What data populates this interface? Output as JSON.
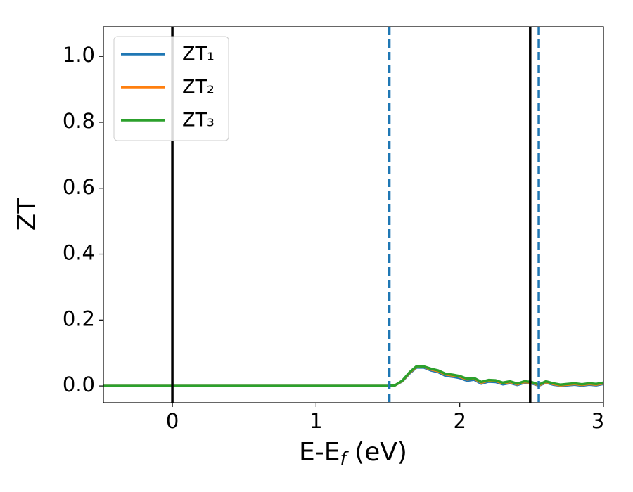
{
  "chart_data": {
    "type": "line",
    "xlabel": [
      "E-E",
      "f",
      " (eV)"
    ],
    "ylabel": "ZT",
    "x": [
      -0.48,
      0,
      0.5,
      1.0,
      1.5,
      1.55,
      1.6,
      1.65,
      1.7,
      1.75,
      1.8,
      1.85,
      1.9,
      1.95,
      2.0,
      2.05,
      2.1,
      2.15,
      2.2,
      2.25,
      2.3,
      2.35,
      2.4,
      2.45,
      2.5,
      2.55,
      2.6,
      2.65,
      2.7,
      2.75,
      2.8,
      2.85,
      2.9,
      2.95,
      3.0
    ],
    "series": [
      {
        "name": "ZT₁",
        "color": "#1f77b4",
        "values": [
          0,
          0,
          0,
          0,
          0,
          0.002,
          0.014,
          0.038,
          0.056,
          0.056,
          0.047,
          0.042,
          0.031,
          0.028,
          0.024,
          0.016,
          0.019,
          0.007,
          0.013,
          0.012,
          0.005,
          0.009,
          0.003,
          0.01,
          0.008,
          0.001,
          0.01,
          0.004,
          0.001,
          0.002,
          0.004,
          0.001,
          0.004,
          0.002,
          0.006
        ]
      },
      {
        "name": "ZT₂",
        "color": "#ff7f0e",
        "values": [
          0,
          0,
          0,
          0,
          0,
          0.002,
          0.015,
          0.04,
          0.058,
          0.058,
          0.05,
          0.045,
          0.035,
          0.032,
          0.028,
          0.02,
          0.022,
          0.01,
          0.016,
          0.015,
          0.008,
          0.012,
          0.005,
          0.012,
          0.01,
          0.002,
          0.012,
          0.006,
          0.002,
          0.004,
          0.006,
          0.003,
          0.006,
          0.004,
          0.008
        ]
      },
      {
        "name": "ZT₃",
        "color": "#2ca02c",
        "values": [
          0,
          0,
          0,
          0,
          0,
          0.002,
          0.016,
          0.041,
          0.06,
          0.059,
          0.052,
          0.047,
          0.037,
          0.034,
          0.03,
          0.022,
          0.024,
          0.012,
          0.018,
          0.017,
          0.01,
          0.014,
          0.007,
          0.014,
          0.012,
          0.004,
          0.014,
          0.008,
          0.004,
          0.006,
          0.008,
          0.005,
          0.008,
          0.006,
          0.01
        ]
      }
    ],
    "vlines": [
      {
        "value": 0,
        "color": "#000000",
        "style": "solid"
      },
      {
        "value": 1.51,
        "color": "#1f77b4",
        "style": "dashed"
      },
      {
        "value": 2.49,
        "color": "#000000",
        "style": "solid"
      },
      {
        "value": 2.55,
        "color": "#1f77b4",
        "style": "dashed"
      }
    ],
    "xlim": [
      -0.48,
      3.0
    ],
    "ylim": [
      -0.051,
      1.09
    ],
    "xticks": [
      0,
      1,
      2,
      3
    ],
    "yticks": [
      {
        "value": 0,
        "label": "0.0"
      },
      0.2,
      0.4,
      0.6,
      0.8,
      {
        "value": 1,
        "label": "1.0"
      }
    ],
    "legend": "upper left",
    "grid": false
  }
}
